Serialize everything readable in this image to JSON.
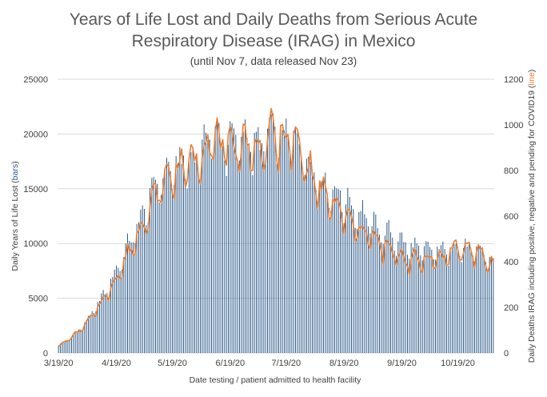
{
  "chart_data": {
    "type": "bar",
    "title_lines": [
      "Years of Life Lost and Daily Deaths from Serious Acute",
      "Respiratory Disease (IRAG) in Mexico"
    ],
    "subtitle": "(until Nov 7, data released Nov 23)",
    "xlabel": "Date testing / patient admitted to health facility",
    "ylabel_left": {
      "prefix": "Daily Years of Life Lost (",
      "highlight": "bars",
      "suffix": ")"
    },
    "ylabel_right": {
      "prefix": "Daily Deaths IRAG including positive, negative and pending for COVID19 (",
      "highlight": "line",
      "suffix": ")"
    },
    "x_tick_labels": [
      "3/19/20",
      "4/19/20",
      "5/19/20",
      "6/19/20",
      "7/19/20",
      "8/19/20",
      "9/19/20",
      "10/19/20"
    ],
    "x_tick_day_index": [
      0,
      31,
      61,
      92,
      122,
      153,
      184,
      214
    ],
    "ylim_left": [
      0,
      25000
    ],
    "y_ticks_left": [
      "0",
      "5000",
      "10000",
      "15000",
      "20000",
      "25000"
    ],
    "ylim_right": [
      0,
      1200
    ],
    "y_ticks_right": [
      "0",
      "200",
      "400",
      "600",
      "800",
      "1000",
      "1200"
    ],
    "grid": true,
    "start_date": "3/19/20",
    "end_date": "11/7/20",
    "weekly_pattern": [
      1.0,
      1.04,
      1.06,
      1.03,
      0.98,
      0.9,
      0.86
    ],
    "colors": {
      "bars": "#2e5c8a",
      "line": "#ed7d31",
      "grid": "#d9d9d9",
      "title": "#595959",
      "text": "#404040"
    },
    "series": [
      {
        "name": "Daily Years of Life Lost",
        "axis": "left",
        "style": "bars",
        "anchor_days": [
          0,
          7,
          14,
          21,
          28,
          31,
          38,
          45,
          52,
          59,
          66,
          73,
          80,
          84,
          87,
          94,
          101,
          108,
          112,
          115,
          122,
          125,
          129,
          136,
          143,
          150,
          157,
          164,
          171,
          178,
          185,
          192,
          199,
          206,
          213,
          220,
          227,
          233
        ],
        "anchor_values": [
          700,
          1500,
          2700,
          4500,
          6500,
          7700,
          10200,
          12700,
          15600,
          16800,
          17500,
          17800,
          19700,
          20200,
          19300,
          19600,
          20000,
          18800,
          20400,
          20300,
          19800,
          20000,
          19100,
          17000,
          15300,
          14700,
          13500,
          12700,
          11500,
          10900,
          10100,
          9600,
          9500,
          9500,
          9900,
          9500,
          9300,
          8400
        ]
      },
      {
        "name": "Daily Deaths IRAG",
        "axis": "right",
        "style": "line",
        "anchor_days": [
          0,
          7,
          14,
          21,
          28,
          31,
          38,
          45,
          52,
          59,
          66,
          73,
          80,
          84,
          87,
          94,
          101,
          108,
          112,
          115,
          122,
          125,
          129,
          136,
          143,
          150,
          157,
          164,
          171,
          178,
          185,
          192,
          199,
          206,
          213,
          220,
          227,
          233
        ],
        "anchor_values": [
          30,
          70,
          120,
          200,
          290,
          330,
          450,
          570,
          700,
          780,
          830,
          850,
          930,
          970,
          910,
          920,
          930,
          880,
          970,
          960,
          940,
          950,
          900,
          780,
          690,
          640,
          570,
          540,
          490,
          450,
          420,
          410,
          420,
          420,
          470,
          450,
          440,
          380
        ]
      }
    ]
  }
}
